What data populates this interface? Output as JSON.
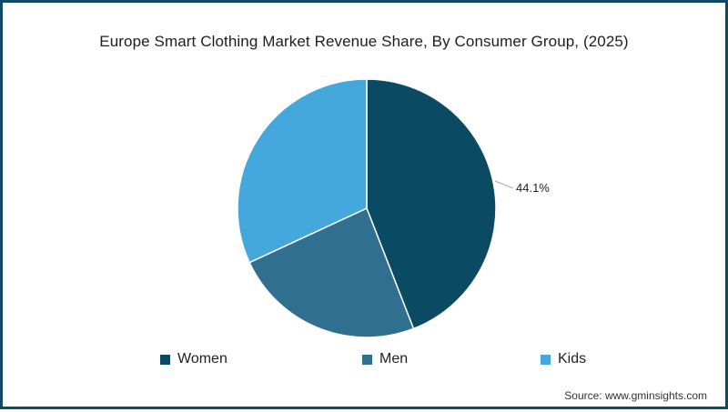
{
  "chart_data": {
    "type": "pie",
    "title": "Europe Smart Clothing Market Revenue Share, By Consumer Group, (2025)",
    "categories": [
      "Women",
      "Men",
      "Kids"
    ],
    "values": [
      44.1,
      24.0,
      31.9
    ],
    "colors": [
      "#0a4a63",
      "#306f8f",
      "#45a8dc"
    ],
    "data_labels": [
      {
        "category": "Women",
        "text": "44.1%"
      }
    ],
    "legend_position": "bottom",
    "start_angle_deg": 0,
    "direction": "clockwise",
    "source": "Source: www.gminsights.com"
  },
  "title": "Europe Smart Clothing Market Revenue Share, By Consumer Group, (2025)",
  "label_women": "44.1%",
  "legend": {
    "items": [
      {
        "label": "Women",
        "color": "#0a4a63"
      },
      {
        "label": "Men",
        "color": "#306f8f"
      },
      {
        "label": "Kids",
        "color": "#45a8dc"
      }
    ]
  },
  "source": "Source: www.gminsights.com",
  "frame_color": "#0f4a63"
}
